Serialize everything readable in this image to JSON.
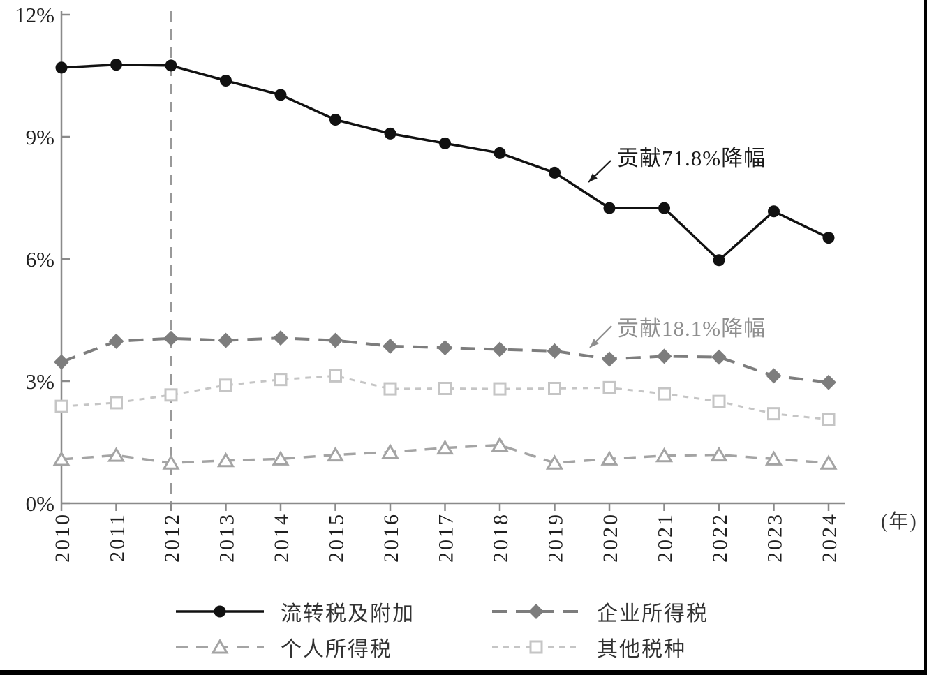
{
  "page": {
    "background": "#ffffff",
    "frame_color": "#000000"
  },
  "chart_data": {
    "type": "line",
    "title": "",
    "categories": [
      "2010",
      "2011",
      "2012",
      "2013",
      "2014",
      "2015",
      "2016",
      "2017",
      "2018",
      "2019",
      "2020",
      "2021",
      "2022",
      "2023",
      "2024"
    ],
    "x_axis_unit_label": "(年)",
    "ylim": [
      0,
      12
    ],
    "y_ticks": [
      0,
      3,
      6,
      9,
      12
    ],
    "y_tick_labels": [
      "0%",
      "3%",
      "6%",
      "9%",
      "12%"
    ],
    "grid": false,
    "legend_position": "bottom",
    "reference_line": {
      "at_category": "2012",
      "style": "dashed",
      "color": "#999999"
    },
    "series": [
      {
        "name": "流转税及附加",
        "color": "#111111",
        "line": "solid",
        "marker": "circle-filled",
        "values": [
          10.7,
          10.77,
          10.75,
          10.38,
          10.03,
          9.42,
          9.08,
          8.84,
          8.6,
          8.12,
          7.25,
          7.25,
          5.97,
          7.17,
          6.52
        ]
      },
      {
        "name": "企业所得税",
        "color": "#7d7d7d",
        "line": "long-dash",
        "marker": "diamond-filled",
        "values": [
          3.47,
          3.98,
          4.05,
          4.0,
          4.06,
          4.0,
          3.86,
          3.82,
          3.78,
          3.74,
          3.54,
          3.61,
          3.59,
          3.13,
          2.97
        ]
      },
      {
        "name": "个人所得税",
        "color": "#a4a4a4",
        "line": "dash",
        "marker": "triangle-open",
        "values": [
          1.08,
          1.18,
          0.99,
          1.05,
          1.09,
          1.19,
          1.26,
          1.36,
          1.43,
          0.99,
          1.09,
          1.17,
          1.19,
          1.09,
          0.99
        ]
      },
      {
        "name": "其他税种",
        "color": "#c5c5c5",
        "line": "short-dash",
        "marker": "square-open",
        "values": [
          2.38,
          2.47,
          2.66,
          2.9,
          3.04,
          3.13,
          2.81,
          2.82,
          2.81,
          2.82,
          2.84,
          2.69,
          2.5,
          2.2,
          2.06
        ]
      }
    ],
    "annotations": [
      {
        "text": "贡献71.8%降幅",
        "color": "#1a1a1a",
        "points_to_series": "流转税及附加"
      },
      {
        "text": "贡献18.1%降幅",
        "color": "#8e8e8e",
        "points_to_series": "企业所得税"
      }
    ]
  }
}
